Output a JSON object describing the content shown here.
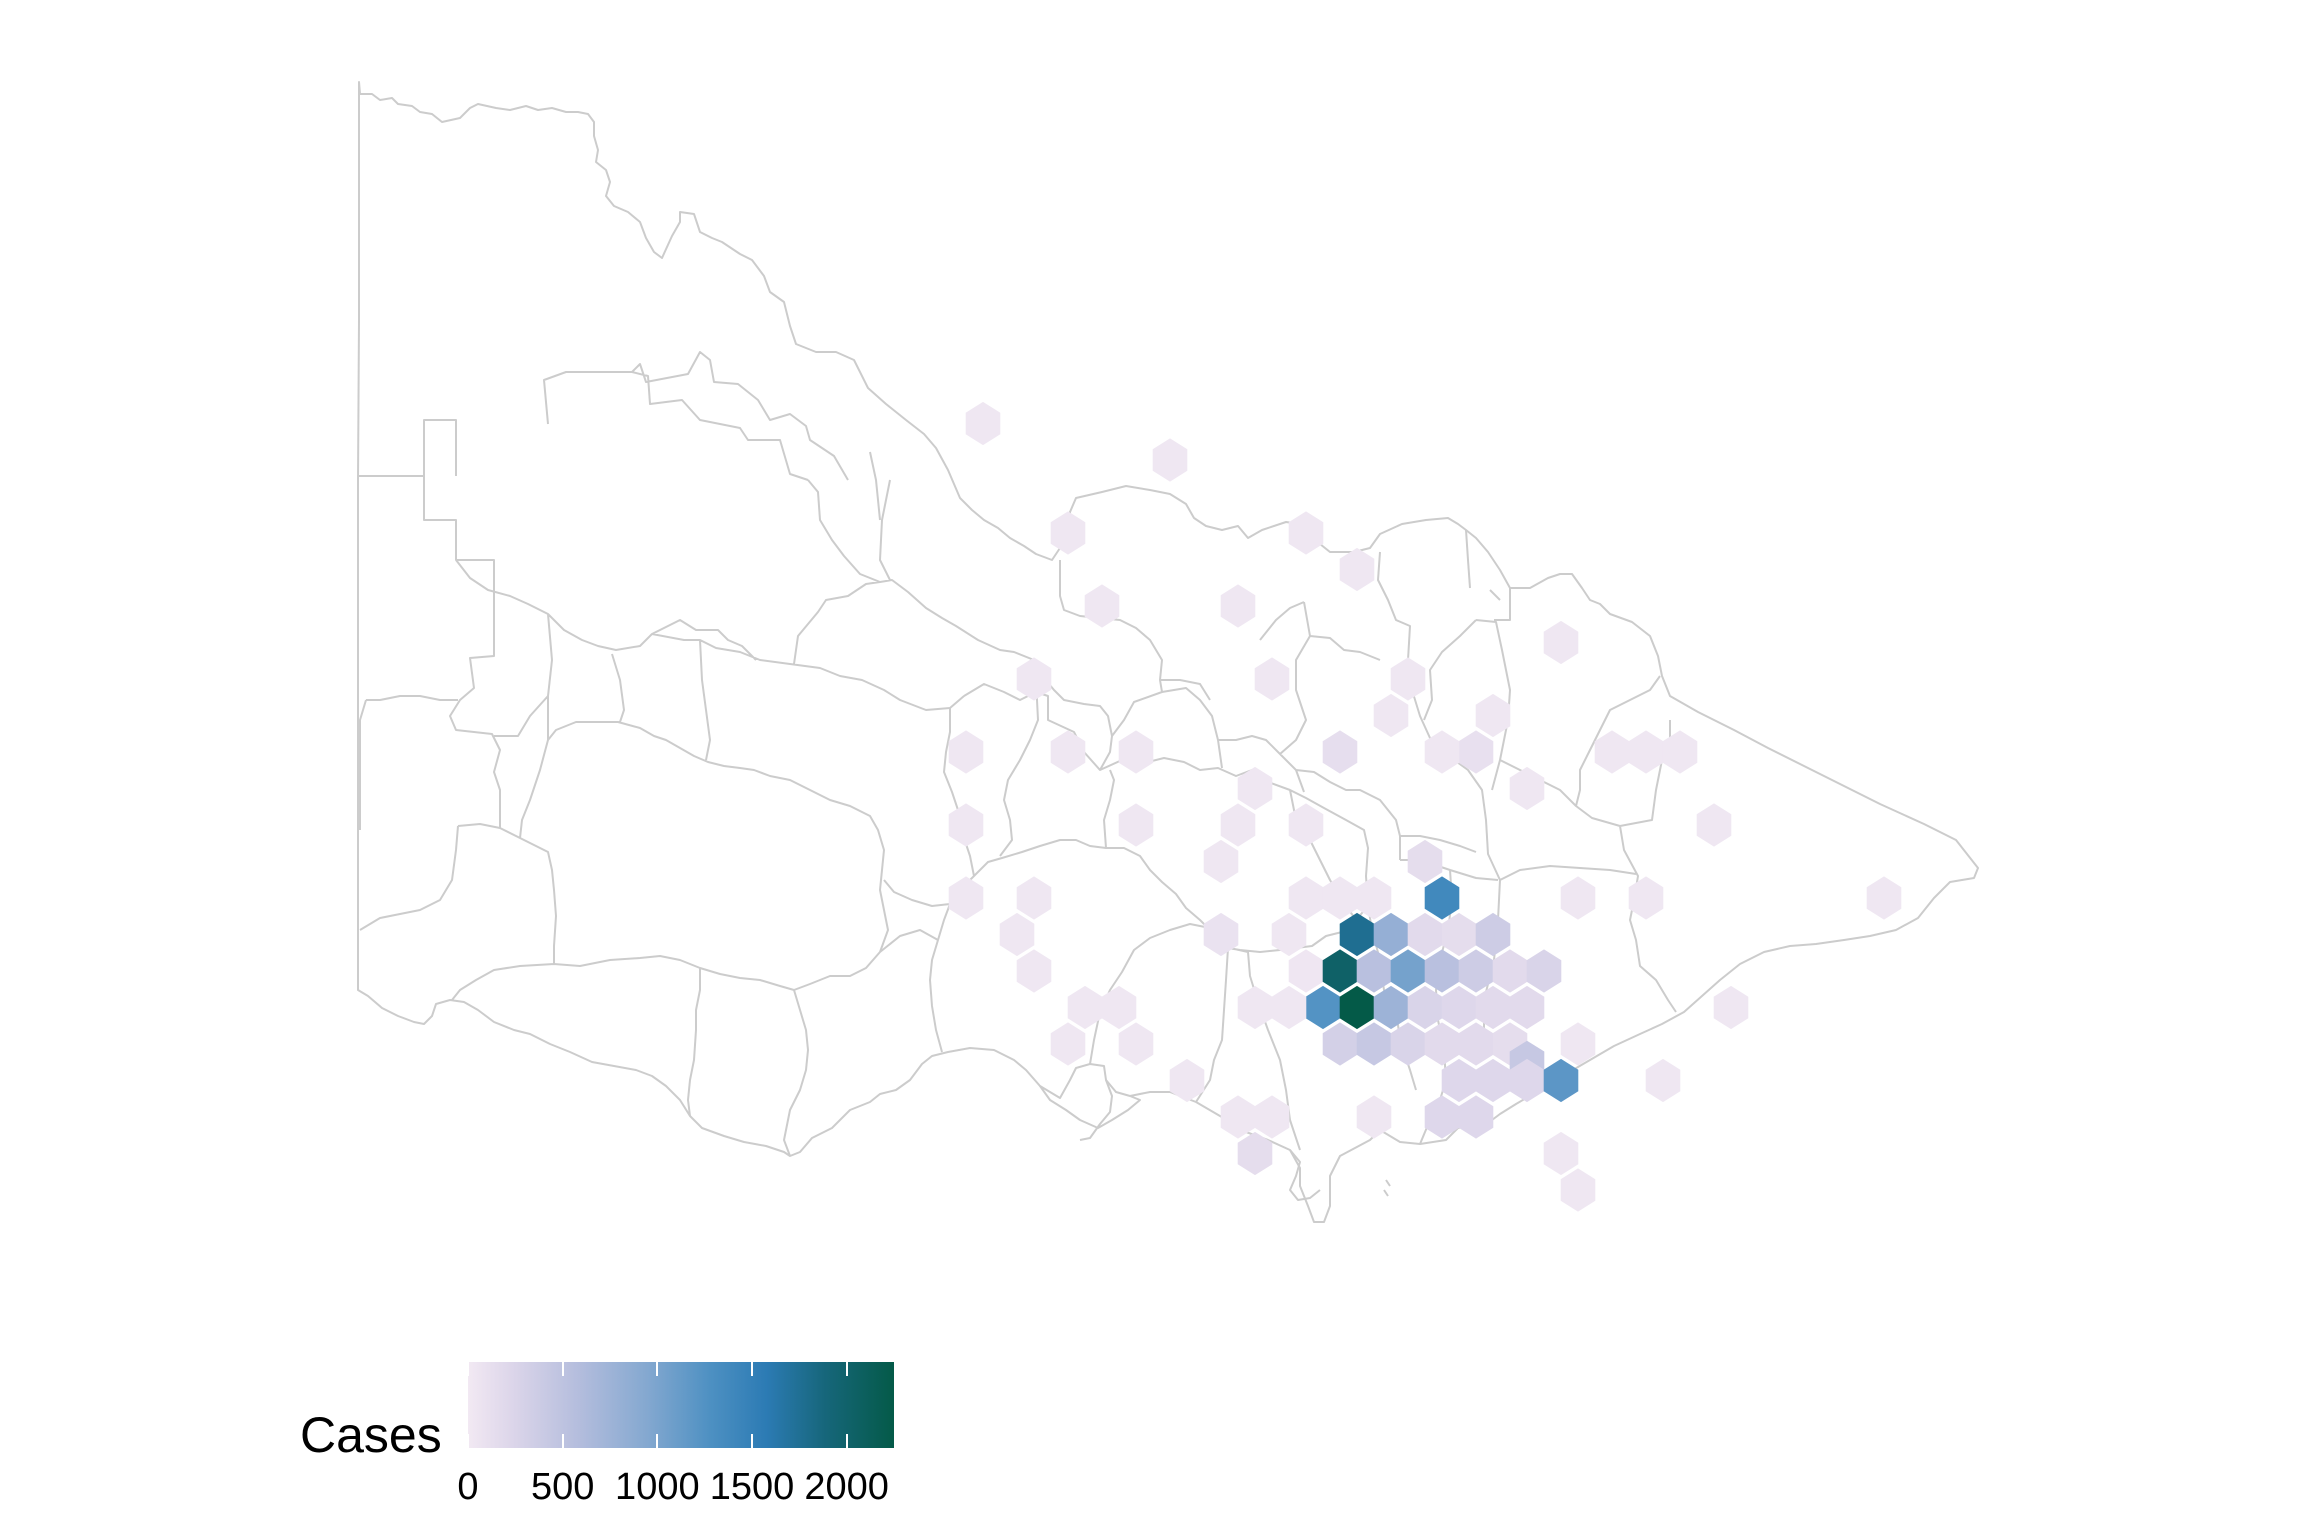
{
  "legend": {
    "title": "Cases",
    "min": 0,
    "max": 2250,
    "ticks": [
      {
        "value": 0,
        "label": "0"
      },
      {
        "value": 500,
        "label": "500"
      },
      {
        "value": 1000,
        "label": "1000"
      },
      {
        "value": 1500,
        "label": "1500"
      },
      {
        "value": 2000,
        "label": "2000"
      }
    ]
  },
  "colors": {
    "scale": [
      "#f2e9f3",
      "#ddd6ea",
      "#b4bddd",
      "#84a8d0",
      "#4d90c2",
      "#2c7bb4",
      "#16667a",
      "#045a48"
    ],
    "boundary": "#cccccc"
  },
  "chart_data": {
    "type": "heatmap",
    "variable": "Cases",
    "bins": [
      {
        "col": 13,
        "row": 0,
        "cases": 1400
      },
      {
        "col": 10,
        "row": 1,
        "cases": 1800
      },
      {
        "col": 11,
        "row": 1,
        "cases": 850
      },
      {
        "col": 12,
        "row": 1,
        "cases": 250
      },
      {
        "col": 13,
        "row": 1,
        "cases": 200
      },
      {
        "col": 14,
        "row": 1,
        "cases": 450
      },
      {
        "col": 9,
        "row": 2,
        "cases": 50
      },
      {
        "col": 10,
        "row": 2,
        "cases": 2050
      },
      {
        "col": 11,
        "row": 2,
        "cases": 600
      },
      {
        "col": 12,
        "row": 2,
        "cases": 1050
      },
      {
        "col": 13,
        "row": 2,
        "cases": 600
      },
      {
        "col": 14,
        "row": 2,
        "cases": 450
      },
      {
        "col": 15,
        "row": 2,
        "cases": 250
      },
      {
        "col": 16,
        "row": 2,
        "cases": 350
      },
      {
        "col": 9,
        "row": 3,
        "cases": 1250
      },
      {
        "col": 10,
        "row": 3,
        "cases": 2250
      },
      {
        "col": 11,
        "row": 3,
        "cases": 800
      },
      {
        "col": 12,
        "row": 3,
        "cases": 350
      },
      {
        "col": 13,
        "row": 3,
        "cases": 300
      },
      {
        "col": 14,
        "row": 3,
        "cases": 250
      },
      {
        "col": 15,
        "row": 3,
        "cases": 250
      },
      {
        "col": 10,
        "row": 4,
        "cases": 400
      },
      {
        "col": 11,
        "row": 4,
        "cases": 500
      },
      {
        "col": 12,
        "row": 4,
        "cases": 350
      },
      {
        "col": 13,
        "row": 4,
        "cases": 250
      },
      {
        "col": 14,
        "row": 4,
        "cases": 250
      },
      {
        "col": 15,
        "row": 4,
        "cases": 200
      },
      {
        "col": 15,
        "row": 4.5,
        "cases": 500
      },
      {
        "col": 13,
        "row": 5,
        "cases": 300
      },
      {
        "col": 14,
        "row": 5,
        "cases": 300
      },
      {
        "col": 15,
        "row": 5,
        "cases": 300
      },
      {
        "col": 16,
        "row": 5,
        "cases": 1200
      },
      {
        "col": 13,
        "row": 6,
        "cases": 300
      },
      {
        "col": 14,
        "row": 6,
        "cases": 300
      },
      {
        "col": 11,
        "row": 6,
        "cases": 40
      },
      {
        "col": 12,
        "row": -1,
        "cases": 200
      },
      {
        "col": 11,
        "row": 0,
        "cases": 40
      },
      {
        "col": 9,
        "row": 0,
        "cases": 40
      },
      {
        "col": 8,
        "row": 1,
        "cases": 40
      },
      {
        "col": 8,
        "row": 3,
        "cases": 40
      },
      {
        "col": 8,
        "row": 6,
        "cases": 40
      },
      {
        "col": 7,
        "row": 7,
        "cases": 200
      },
      {
        "col": 16,
        "row": 7,
        "cases": 40
      },
      {
        "col": 17,
        "row": 8,
        "cases": 40
      },
      {
        "col": 17,
        "row": 4,
        "cases": 40
      },
      {
        "col": 19,
        "row": 5,
        "cases": 40
      },
      {
        "col": 17,
        "row": 0,
        "cases": 40
      },
      {
        "col": 19,
        "row": 0,
        "cases": 40
      },
      {
        "col": 21,
        "row": 3,
        "cases": 40
      },
      {
        "col": 21,
        "row": -2,
        "cases": 40
      },
      {
        "col": 26,
        "row": 0,
        "cases": 40
      },
      {
        "col": 19,
        "row": -4,
        "cases": 40
      },
      {
        "col": 20,
        "row": -4,
        "cases": 40
      },
      {
        "col": 18,
        "row": -4,
        "cases": 40
      },
      {
        "col": 15,
        "row": -3,
        "cases": 40
      },
      {
        "col": 14,
        "row": -5,
        "cases": 40
      },
      {
        "col": 16,
        "row": -7,
        "cases": 40
      },
      {
        "col": 14,
        "row": -4,
        "cases": 150
      },
      {
        "col": 13,
        "row": -4,
        "cases": 40
      },
      {
        "col": 11,
        "row": -5,
        "cases": 40
      },
      {
        "col": 12,
        "row": -6,
        "cases": 40
      },
      {
        "col": 10,
        "row": -4,
        "cases": 180
      },
      {
        "col": 8,
        "row": -6,
        "cases": 40
      },
      {
        "col": 7,
        "row": -2,
        "cases": 40
      },
      {
        "col": 7,
        "row": -3,
        "cases": 40
      },
      {
        "col": 9,
        "row": -2,
        "cases": 40
      },
      {
        "col": 10,
        "row": 0,
        "cases": 40
      },
      {
        "col": 6,
        "row": -1,
        "cases": 40
      },
      {
        "col": 6,
        "row": 1,
        "cases": 120
      },
      {
        "col": 7,
        "row": 3,
        "cases": 40
      },
      {
        "col": 7,
        "row": 6,
        "cases": 40
      },
      {
        "col": 5,
        "row": 5,
        "cases": 40
      },
      {
        "col": 4,
        "row": 4,
        "cases": 40
      },
      {
        "col": 3,
        "row": 3,
        "cases": 40
      },
      {
        "col": 2,
        "row": 4,
        "cases": 40
      },
      {
        "col": 2,
        "row": 3,
        "cases": 40
      },
      {
        "col": 1,
        "row": 2,
        "cases": 40
      },
      {
        "col": 1,
        "row": 0,
        "cases": 40
      },
      {
        "col": 0,
        "row": 1,
        "cases": 40
      },
      {
        "col": -1,
        "row": 0,
        "cases": 40
      },
      {
        "col": -1,
        "row": -2,
        "cases": 40
      },
      {
        "col": -1,
        "row": -4,
        "cases": 40
      },
      {
        "col": 2,
        "row": -4,
        "cases": 40
      },
      {
        "col": 4,
        "row": -4,
        "cases": 40
      },
      {
        "col": 4,
        "row": -2,
        "cases": 40
      },
      {
        "col": 1,
        "row": -6,
        "cases": 40
      },
      {
        "col": 3,
        "row": -8,
        "cases": 40
      },
      {
        "col": 2,
        "row": -10,
        "cases": 40
      },
      {
        "col": 5,
        "row": -12,
        "cases": 40
      },
      {
        "col": 7,
        "row": -8,
        "cases": 40
      },
      {
        "col": -1,
        "row": -13,
        "cases": 40
      },
      {
        "col": 9,
        "row": -10,
        "cases": 40
      },
      {
        "col": 10,
        "row": -9,
        "cases": 40
      }
    ]
  }
}
